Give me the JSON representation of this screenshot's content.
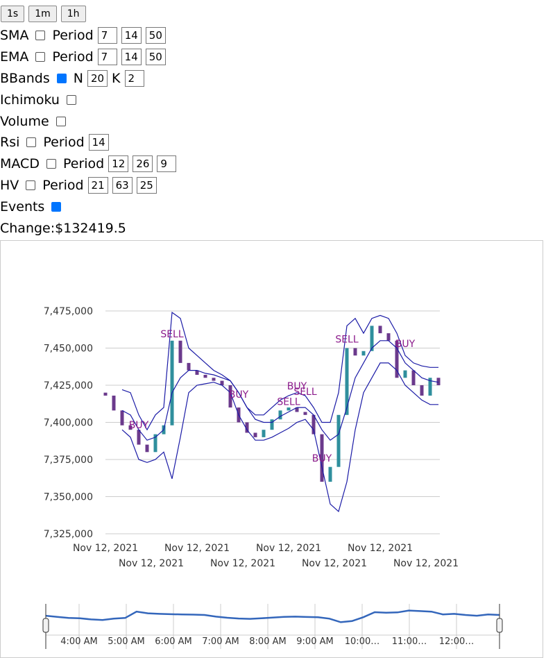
{
  "buttons": [
    "1s",
    "1m",
    "1h"
  ],
  "controls": [
    {
      "label": "SMA",
      "checked": false,
      "param_label": "Period",
      "inputs": [
        "7",
        "14",
        "50"
      ]
    },
    {
      "label": "EMA",
      "checked": false,
      "param_label": "Period",
      "inputs": [
        "7",
        "14",
        "50"
      ]
    },
    {
      "label": "BBands",
      "checked": true,
      "param_label": "N",
      "inputs": [
        "20"
      ],
      "param2_label": "K",
      "inputs2": [
        "2"
      ]
    },
    {
      "label": "Ichimoku",
      "checked": false
    },
    {
      "label": "Volume",
      "checked": false
    },
    {
      "label": "Rsi",
      "checked": false,
      "param_label": "Period",
      "inputs": [
        "14"
      ]
    },
    {
      "label": "MACD",
      "checked": false,
      "param_label": "Period",
      "inputs": [
        "12",
        "26",
        "9"
      ]
    },
    {
      "label": "HV",
      "checked": false,
      "param_label": "Period",
      "inputs": [
        "21",
        "63",
        "25"
      ]
    },
    {
      "label": "Events",
      "checked": true
    }
  ],
  "change": "Change:$132419.5",
  "chart_data": {
    "type": "candlestick",
    "ylim": [
      7325000,
      7475000
    ],
    "yticks": [
      {
        "value": 7325000,
        "label": "7,325,000"
      },
      {
        "value": 7350000,
        "label": "7,350,000"
      },
      {
        "value": 7375000,
        "label": "7,375,000"
      },
      {
        "value": 7400000,
        "label": "7,400,000"
      },
      {
        "value": 7425000,
        "label": "7,425,000"
      },
      {
        "value": 7450000,
        "label": "7,450,000"
      },
      {
        "value": 7475000,
        "label": "7,475,000"
      }
    ],
    "grid": true,
    "x_labels": [
      "Nov 12, 2021",
      "Nov 12, 2021",
      "Nov 12, 2021",
      "Nov 12, 2021",
      "Nov 12, 2021",
      "Nov 12, 2021",
      "Nov 12, 2021",
      "Nov 12, 2021"
    ],
    "up_color": "#2f8f9d",
    "down_color": "#6b3a8c",
    "band_color": "#1a1aa6",
    "event_color": "#8b1a8b",
    "open": [
      7420000,
      7418000,
      7408000,
      7398000,
      7395000,
      7385000,
      7380000,
      7392000,
      7398000,
      7455000,
      7440000,
      7435000,
      7432000,
      7430000,
      7428000,
      7425000,
      7410000,
      7400000,
      7393000,
      7390000,
      7395000,
      7402000,
      7408000,
      7410000,
      7407000,
      7405000,
      7392000,
      7360000,
      7370000,
      7405000,
      7450000,
      7445000,
      7448000,
      7465000,
      7460000,
      7455000,
      7430000,
      7435000,
      7425000,
      7418000,
      7430000
    ],
    "close": [
      7418000,
      7408000,
      7398000,
      7395000,
      7385000,
      7380000,
      7392000,
      7398000,
      7455000,
      7440000,
      7435000,
      7432000,
      7430000,
      7428000,
      7425000,
      7410000,
      7400000,
      7393000,
      7390000,
      7395000,
      7402000,
      7408000,
      7410000,
      7407000,
      7405000,
      7392000,
      7360000,
      7370000,
      7405000,
      7450000,
      7445000,
      7448000,
      7465000,
      7460000,
      7455000,
      7430000,
      7435000,
      7425000,
      7418000,
      7430000,
      7425000
    ],
    "upper": [
      null,
      null,
      7422000,
      7420000,
      7405000,
      7395000,
      7405000,
      7410000,
      7474000,
      7470000,
      7450000,
      7445000,
      7440000,
      7435000,
      7432000,
      7428000,
      7420000,
      7410000,
      7405000,
      7405000,
      7410000,
      7415000,
      7418000,
      7420000,
      7418000,
      7410000,
      7400000,
      7400000,
      7420000,
      7465000,
      7470000,
      7460000,
      7470000,
      7472000,
      7470000,
      7460000,
      7445000,
      7440000,
      7438000,
      7437000,
      7437000
    ],
    "middle": [
      null,
      null,
      7408000,
      7405000,
      7395000,
      7388000,
      7390000,
      7395000,
      7420000,
      7430000,
      7435000,
      7435000,
      7433000,
      7432000,
      7430000,
      7428000,
      7420000,
      7410000,
      7402000,
      7400000,
      7400000,
      7404000,
      7407000,
      7410000,
      7410000,
      7405000,
      7395000,
      7388000,
      7392000,
      7410000,
      7430000,
      7440000,
      7450000,
      7455000,
      7455000,
      7450000,
      7440000,
      7435000,
      7430000,
      7428000,
      7427000
    ],
    "lower": [
      null,
      null,
      7395000,
      7390000,
      7375000,
      7373000,
      7375000,
      7380000,
      7362000,
      7390000,
      7420000,
      7425000,
      7426000,
      7427000,
      7425000,
      7420000,
      7405000,
      7395000,
      7388000,
      7388000,
      7390000,
      7393000,
      7396000,
      7400000,
      7402000,
      7395000,
      7370000,
      7345000,
      7340000,
      7360000,
      7395000,
      7420000,
      7430000,
      7440000,
      7440000,
      7435000,
      7425000,
      7420000,
      7415000,
      7412000,
      7412000
    ],
    "event_labels": [
      null,
      null,
      null,
      null,
      "BUY",
      null,
      null,
      null,
      "SELL",
      null,
      null,
      null,
      null,
      null,
      null,
      null,
      "BUY",
      null,
      null,
      null,
      null,
      null,
      "SELL",
      "BUY",
      "SELL",
      null,
      "BUY",
      null,
      null,
      "SELL",
      null,
      null,
      null,
      null,
      null,
      null,
      "BUY",
      null,
      null,
      null,
      null
    ],
    "event_values": [
      null,
      null,
      null,
      null,
      7398400,
      null,
      null,
      null,
      7459600,
      null,
      null,
      null,
      null,
      null,
      null,
      null,
      7419000,
      null,
      null,
      null,
      null,
      null,
      7414000,
      7424500,
      7420800,
      null,
      7376000,
      null,
      null,
      7456000,
      null,
      null,
      null,
      null,
      null,
      null,
      7453000,
      null,
      null,
      null,
      null
    ],
    "navigator": {
      "labels": [
        "4:00 AM",
        "5:00 AM",
        "6:00 AM",
        "7:00 AM",
        "8:00 AM",
        "9:00 AM",
        "10:00…",
        "11:00…",
        "12:00…"
      ],
      "color": "#3366bb"
    }
  }
}
